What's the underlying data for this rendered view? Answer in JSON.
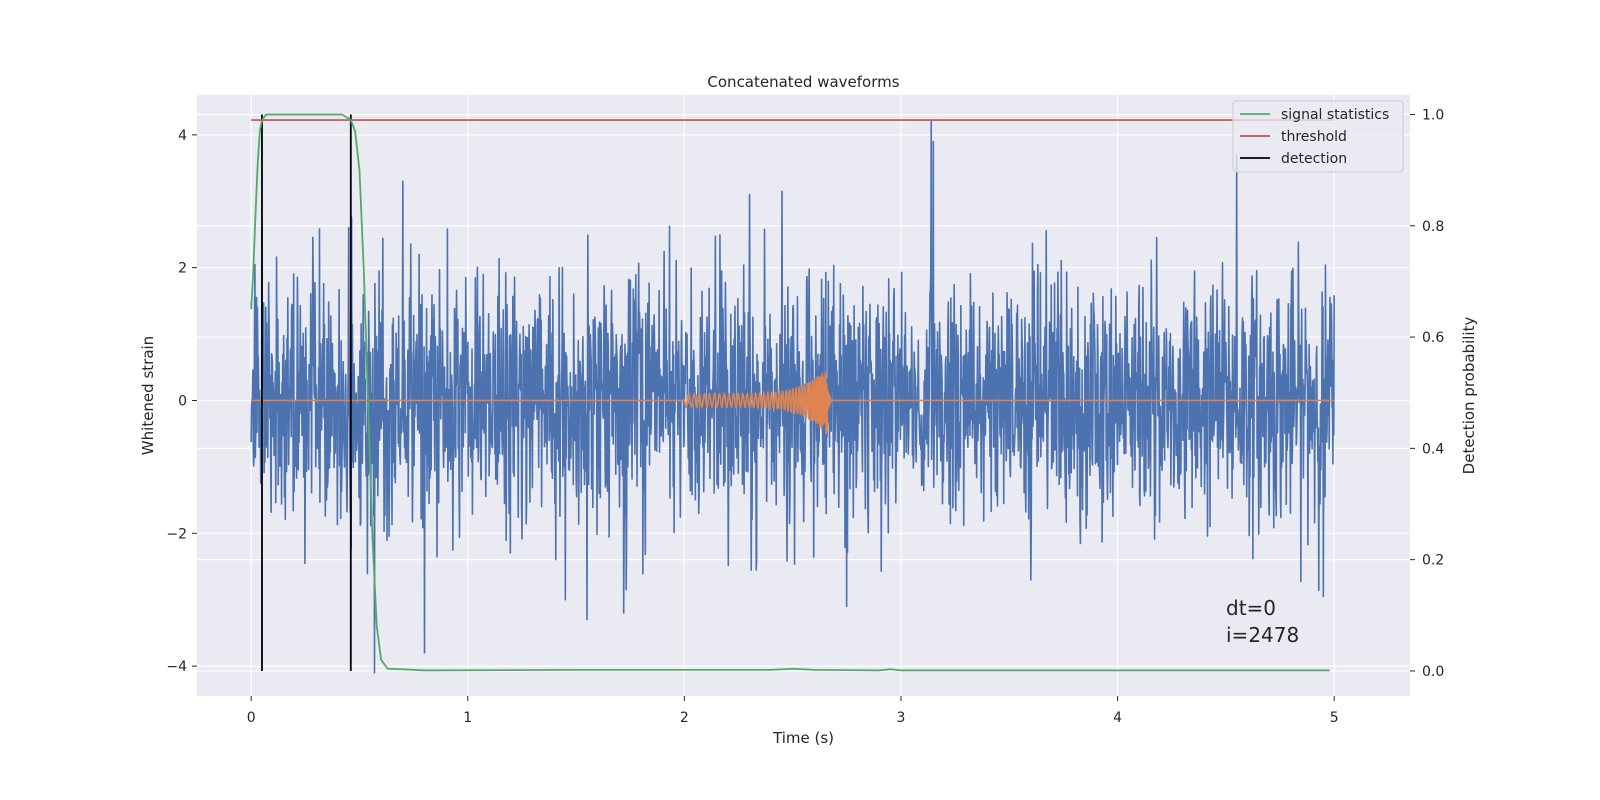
{
  "chart_data": {
    "type": "line",
    "title": "Concatenated waveforms",
    "xlabel": "Time (s)",
    "ylabel": "Whitened strain",
    "ylabel_right": "Detection probability",
    "xlim": [
      -0.25,
      5.35
    ],
    "ylim": [
      -4.45,
      4.6
    ],
    "ylim_right": [
      -0.045,
      1.035
    ],
    "x_ticks": [
      0,
      1,
      2,
      3,
      4,
      5
    ],
    "y_ticks": [
      -4,
      -2,
      0,
      2,
      4
    ],
    "y_ticks_right": [
      0.0,
      0.2,
      0.4,
      0.6,
      0.8,
      1.0
    ],
    "x_tick_labels": [
      "0",
      "1",
      "2",
      "3",
      "4",
      "5"
    ],
    "y_tick_labels": [
      "−4",
      "−2",
      "0",
      "2",
      "4"
    ],
    "y_tick_labels_right": [
      "0.0",
      "0.2",
      "0.4",
      "0.6",
      "0.8",
      "1.0"
    ],
    "grid": true,
    "legend_position": "top-right",
    "colors": {
      "background": "#eaeaf2",
      "grid": "#ffffff",
      "strain": "#4c72b0",
      "waveform": "#dd8452",
      "signal_statistics": "#55a868",
      "threshold": "#c44e52",
      "detection": "#000000"
    },
    "legend": [
      {
        "label": "signal statistics",
        "color": "#55a868"
      },
      {
        "label": "threshold",
        "color": "#c44e52"
      },
      {
        "label": "detection",
        "color": "#000000"
      }
    ],
    "series": [
      {
        "kind": "noise",
        "axis": "left",
        "x_range": [
          0,
          5
        ],
        "envelope_typical": 2.0,
        "peaks": [
          [
            0.05,
            2.6
          ],
          [
            0.45,
            2.6
          ],
          [
            0.57,
            -4.1
          ],
          [
            0.7,
            3.3
          ],
          [
            0.8,
            -3.8
          ],
          [
            1.45,
            -3.0
          ],
          [
            1.55,
            -3.3
          ],
          [
            1.72,
            -3.2
          ],
          [
            2.3,
            3.1
          ],
          [
            2.45,
            3.15
          ],
          [
            2.75,
            -3.1
          ],
          [
            3.14,
            4.2
          ],
          [
            3.15,
            3.9
          ],
          [
            3.6,
            -2.7
          ],
          [
            4.55,
            3.7
          ],
          [
            4.95,
            -2.95
          ]
        ]
      },
      {
        "name": "",
        "kind": "chirp",
        "axis": "left",
        "x_range": [
          0,
          5
        ],
        "chirp_start": 2.0,
        "chirp_end": 2.66,
        "start_amplitude": 0.1,
        "peak_amplitude": 0.55
      },
      {
        "name": "signal statistics",
        "axis": "right",
        "points": [
          [
            0.0,
            0.65
          ],
          [
            0.01,
            0.72
          ],
          [
            0.02,
            0.82
          ],
          [
            0.03,
            0.91
          ],
          [
            0.04,
            0.97
          ],
          [
            0.05,
            0.99
          ],
          [
            0.07,
            1.0
          ],
          [
            0.1,
            1.0
          ],
          [
            0.3,
            1.0
          ],
          [
            0.42,
            1.0
          ],
          [
            0.46,
            0.99
          ],
          [
            0.48,
            0.97
          ],
          [
            0.5,
            0.9
          ],
          [
            0.52,
            0.72
          ],
          [
            0.54,
            0.48
          ],
          [
            0.56,
            0.24
          ],
          [
            0.58,
            0.08
          ],
          [
            0.6,
            0.02
          ],
          [
            0.63,
            0.004
          ],
          [
            0.7,
            0.003
          ],
          [
            0.8,
            0.001
          ],
          [
            1.5,
            0.002
          ],
          [
            2.4,
            0.002
          ],
          [
            2.5,
            0.004
          ],
          [
            2.6,
            0.002
          ],
          [
            2.9,
            0.001
          ],
          [
            2.95,
            0.003
          ],
          [
            3.0,
            0.001
          ],
          [
            4.98,
            0.001
          ]
        ]
      },
      {
        "name": "threshold",
        "axis": "right",
        "value": 0.99,
        "x_range": [
          0,
          5
        ]
      },
      {
        "name": "detection",
        "axis": "right",
        "x_values": [
          0.05,
          0.46
        ],
        "range": [
          0.0,
          1.0
        ]
      }
    ],
    "annotations": [
      "dt=0",
      "i=2478"
    ]
  }
}
